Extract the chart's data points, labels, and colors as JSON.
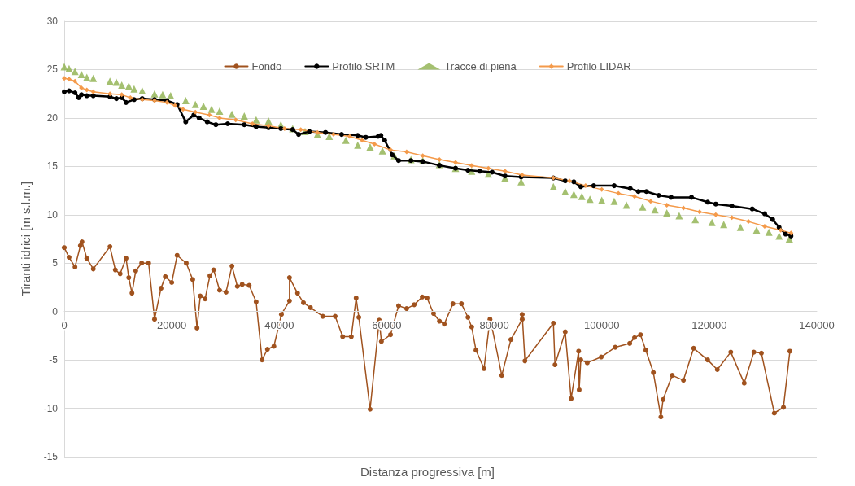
{
  "chart_data": {
    "type": "line",
    "xlabel": "Distanza progressiva [m]",
    "ylabel": "Tiranti idrici [m s.l.m.]",
    "xlim": [
      0,
      140000
    ],
    "xticks": [
      0,
      20000,
      40000,
      60000,
      80000,
      100000,
      120000,
      140000
    ],
    "ylim": [
      -15,
      30
    ],
    "yticks": [
      -15,
      -10,
      -5,
      0,
      5,
      10,
      15,
      20,
      25,
      30
    ],
    "grid": "y",
    "legend": "top",
    "series": [
      {
        "name": "Fondo",
        "color": "#a0521e",
        "marker": "circle",
        "line_style": "solid",
        "x": [
          0,
          900,
          2000,
          3000,
          3300,
          4200,
          5400,
          8500,
          9500,
          10400,
          11500,
          12000,
          12600,
          13300,
          14400,
          15700,
          16800,
          18000,
          18800,
          20000,
          21000,
          22700,
          23900,
          24700,
          25300,
          26200,
          27100,
          27800,
          28900,
          30100,
          31200,
          32200,
          33100,
          34400,
          35700,
          36800,
          37800,
          39000,
          40400,
          41900,
          41900,
          43400,
          44500,
          45800,
          48100,
          50400,
          51800,
          53400,
          54300,
          54800,
          56900,
          58600,
          59000,
          60700,
          62200,
          63700,
          65100,
          66600,
          67500,
          68700,
          69800,
          70700,
          72300,
          73900,
          75100,
          75800,
          76600,
          78100,
          79200,
          79500,
          81400,
          83100,
          85200,
          85200,
          85700,
          91000,
          91300,
          93200,
          94300,
          95700,
          95800,
          96100,
          97300,
          99900,
          102500,
          105200,
          106100,
          107200,
          108200,
          109600,
          111000,
          111400,
          113100,
          115200,
          117100,
          119700,
          121500,
          124000,
          126500,
          128300,
          129700,
          132100,
          133800,
          135000
        ],
        "values": [
          6.6,
          5.6,
          4.6,
          6.8,
          7.2,
          5.5,
          4.4,
          6.7,
          4.3,
          3.9,
          5.5,
          3.5,
          1.9,
          4.2,
          5.0,
          5.0,
          -0.8,
          2.4,
          3.6,
          3.0,
          5.8,
          5.0,
          3.3,
          -1.7,
          1.6,
          1.3,
          3.7,
          4.3,
          2.2,
          2.0,
          4.7,
          2.6,
          2.8,
          2.7,
          1.0,
          -5.0,
          -3.9,
          -3.6,
          -0.3,
          1.1,
          3.5,
          1.9,
          0.9,
          0.4,
          -0.5,
          -0.5,
          -2.6,
          -2.6,
          1.4,
          -0.6,
          -10.1,
          -0.9,
          -3.1,
          -2.4,
          0.6,
          0.3,
          0.7,
          1.5,
          1.4,
          -0.2,
          -1.0,
          -1.3,
          0.8,
          0.8,
          -0.6,
          -1.6,
          -4.0,
          -5.9,
          -0.8,
          -1.4,
          -6.6,
          -2.9,
          -0.8,
          -0.3,
          -5.1,
          -1.2,
          -5.5,
          -2.1,
          -9.0,
          -4.1,
          -8.1,
          -5.0,
          -5.3,
          -4.7,
          -3.7,
          -3.3,
          -2.7,
          -2.4,
          -4.0,
          -6.3,
          -10.9,
          -9.1,
          -6.6,
          -7.1,
          -3.8,
          -5.0,
          -6.0,
          -4.2,
          -7.4,
          -4.2,
          -4.3,
          -10.5,
          -9.9,
          -4.1
        ]
      },
      {
        "name": "Profilo SRTM",
        "color": "#000000",
        "marker": "circle",
        "line_style": "solid",
        "x": [
          0,
          900,
          2000,
          2700,
          3200,
          4200,
          5400,
          8500,
          9700,
          10700,
          11500,
          13000,
          14500,
          16800,
          19100,
          21000,
          22600,
          24100,
          25100,
          26600,
          28200,
          30400,
          33500,
          35700,
          38000,
          40300,
          42500,
          43600,
          45600,
          48600,
          51600,
          54600,
          56100,
          58400,
          58900,
          59600,
          61000,
          62200,
          64500,
          66700,
          69800,
          72800,
          75100,
          77300,
          79600,
          82000,
          85000,
          91000,
          93200,
          94800,
          96100,
          98500,
          102300,
          105300,
          106800,
          108300,
          110600,
          112900,
          116700,
          119700,
          121200,
          124200,
          128000,
          130300,
          131800,
          133000,
          134200,
          135200
        ],
        "values": [
          22.7,
          22.8,
          22.6,
          22.1,
          22.4,
          22.3,
          22.3,
          22.2,
          22.0,
          22.1,
          21.6,
          21.9,
          22.0,
          21.9,
          21.8,
          21.4,
          19.6,
          20.3,
          20.0,
          19.6,
          19.3,
          19.4,
          19.3,
          19.1,
          19.0,
          18.9,
          18.8,
          18.3,
          18.6,
          18.5,
          18.3,
          18.2,
          18.0,
          18.1,
          18.2,
          17.7,
          16.2,
          15.6,
          15.6,
          15.5,
          15.1,
          14.8,
          14.6,
          14.5,
          14.4,
          14.0,
          13.9,
          13.8,
          13.5,
          13.4,
          12.9,
          13.0,
          13.0,
          12.7,
          12.4,
          12.4,
          12.0,
          11.8,
          11.8,
          11.3,
          11.1,
          10.9,
          10.6,
          10.1,
          9.5,
          8.7,
          8.0,
          7.8
        ]
      },
      {
        "name": "Tracce di piena",
        "type": "scatter",
        "color": "#8db04c",
        "marker": "triangle",
        "x": [
          0,
          900,
          2000,
          3200,
          4200,
          5400,
          8500,
          9700,
          10700,
          12000,
          13000,
          14500,
          16800,
          18300,
          19800,
          22600,
          24400,
          25900,
          27400,
          28900,
          31200,
          33500,
          35700,
          38000,
          40300,
          42500,
          44800,
          47100,
          49300,
          52400,
          54600,
          56900,
          59200,
          61400,
          64500,
          66700,
          69800,
          72800,
          75800,
          78900,
          82000,
          85000,
          91000,
          93200,
          94800,
          96300,
          97800,
          100000,
          102300,
          104600,
          107600,
          109900,
          112100,
          114400,
          117400,
          120500,
          122700,
          125800,
          128800,
          131100,
          133000,
          134900
        ],
        "values": [
          25.3,
          25.1,
          24.8,
          24.5,
          24.2,
          24.1,
          23.8,
          23.7,
          23.4,
          23.3,
          23.0,
          22.8,
          22.5,
          22.4,
          22.3,
          21.8,
          21.4,
          21.2,
          20.9,
          20.7,
          20.4,
          20.2,
          19.8,
          19.7,
          19.3,
          18.9,
          18.6,
          18.3,
          18.1,
          17.7,
          17.2,
          17.0,
          16.6,
          16.1,
          15.7,
          15.6,
          15.2,
          14.8,
          14.5,
          14.2,
          13.8,
          13.4,
          12.9,
          12.4,
          12.1,
          11.9,
          11.6,
          11.5,
          11.4,
          11.0,
          10.8,
          10.5,
          10.2,
          9.9,
          9.5,
          9.2,
          9.0,
          8.7,
          8.4,
          8.2,
          7.8,
          7.5
        ]
      },
      {
        "name": "Profilo LIDAR",
        "color": "#f49a4a",
        "marker": "diamond",
        "line_style": "solid",
        "x": [
          0,
          900,
          2000,
          3200,
          4200,
          5400,
          8500,
          10700,
          12300,
          14500,
          16800,
          19100,
          20600,
          22100,
          24400,
          27000,
          28900,
          31900,
          35000,
          38000,
          41000,
          44000,
          47100,
          50100,
          53100,
          55400,
          57700,
          60700,
          63700,
          66700,
          69800,
          72800,
          75800,
          78900,
          82000,
          85200,
          91000,
          94000,
          97000,
          100000,
          103100,
          106100,
          109100,
          112100,
          115200,
          118200,
          121200,
          124200,
          127300,
          130300,
          133300,
          135200
        ],
        "values": [
          24.1,
          24.0,
          23.8,
          23.1,
          22.9,
          22.7,
          22.5,
          22.4,
          22.1,
          21.9,
          21.8,
          21.6,
          21.3,
          20.9,
          20.6,
          20.3,
          20.0,
          19.8,
          19.4,
          19.2,
          18.9,
          18.8,
          18.5,
          18.3,
          18.1,
          17.7,
          17.3,
          16.7,
          16.5,
          16.1,
          15.7,
          15.4,
          15.1,
          14.8,
          14.5,
          14.1,
          13.8,
          13.5,
          13.0,
          12.6,
          12.2,
          11.9,
          11.4,
          11.0,
          10.7,
          10.3,
          10.0,
          9.7,
          9.3,
          8.8,
          8.4,
          8.1
        ]
      }
    ]
  }
}
